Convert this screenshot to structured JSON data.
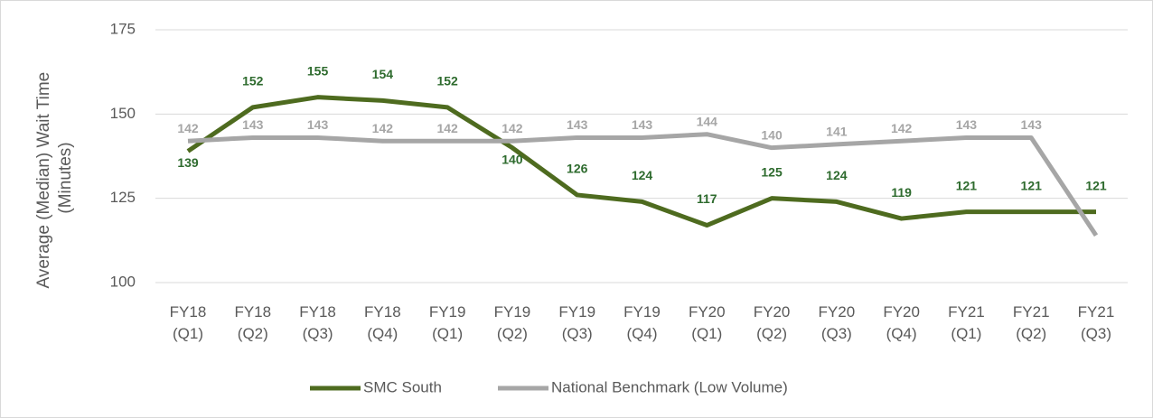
{
  "chart_data": {
    "type": "line",
    "y_label": [
      "Average (Median) Wait Time",
      "(Minutes)"
    ],
    "categories": [
      [
        "FY18",
        "(Q1)"
      ],
      [
        "FY18",
        "(Q2)"
      ],
      [
        "FY18",
        "(Q3)"
      ],
      [
        "FY18",
        "(Q4)"
      ],
      [
        "FY19",
        "(Q1)"
      ],
      [
        "FY19",
        "(Q2)"
      ],
      [
        "FY19",
        "(Q3)"
      ],
      [
        "FY19",
        "(Q4)"
      ],
      [
        "FY20",
        "(Q1)"
      ],
      [
        "FY20",
        "(Q2)"
      ],
      [
        "FY20",
        "(Q3)"
      ],
      [
        "FY20",
        "(Q4)"
      ],
      [
        "FY21",
        "(Q1)"
      ],
      [
        "FY21",
        "(Q2)"
      ],
      [
        "FY21",
        "(Q3)"
      ]
    ],
    "series": [
      {
        "name": "SMC South",
        "color": "#4e6b1f",
        "label_color": "#2e6b2e",
        "values": [
          139,
          152,
          155,
          154,
          152,
          140,
          126,
          124,
          117,
          125,
          124,
          119,
          121,
          121,
          121
        ]
      },
      {
        "name": "National Benchmark (Low Volume)",
        "color": "#a6a6a6",
        "label_color": "#a6a6a6",
        "values": [
          142,
          143,
          143,
          142,
          142,
          142,
          143,
          143,
          144,
          140,
          141,
          142,
          143,
          143,
          114
        ],
        "value_labels": [
          "142",
          "143",
          "143",
          "142",
          "142",
          "142",
          "143",
          "143",
          "144",
          "140",
          "141",
          "142",
          "143",
          "143",
          null
        ]
      }
    ],
    "ylim": [
      100,
      175
    ],
    "yticks": [
      100,
      125,
      150,
      175
    ],
    "grid": true,
    "legend": "bottom"
  }
}
